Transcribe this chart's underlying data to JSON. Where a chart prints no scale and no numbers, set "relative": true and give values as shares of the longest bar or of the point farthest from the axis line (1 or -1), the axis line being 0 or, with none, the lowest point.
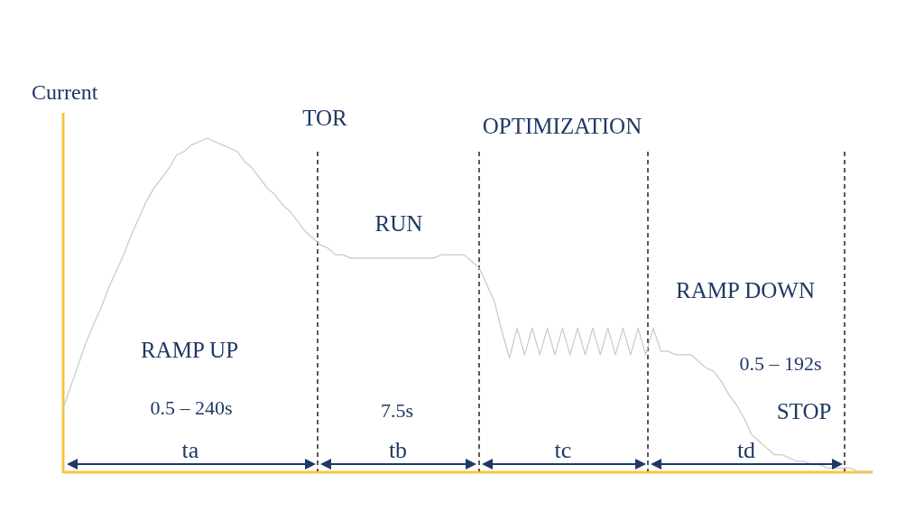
{
  "chart_data": {
    "type": "line",
    "relative": true,
    "ylabel": "Current",
    "marker": "none",
    "line_style": "solid",
    "categories": [
      null,
      null,
      null,
      null,
      null,
      null,
      null,
      null,
      null,
      null,
      null,
      null,
      null,
      null,
      null,
      null,
      null,
      null,
      null,
      null,
      null,
      null,
      null,
      null,
      null,
      null,
      null,
      null,
      null,
      null,
      null,
      null,
      null,
      null,
      null,
      null,
      null,
      null,
      null,
      null,
      null,
      null,
      null,
      null,
      null,
      null,
      null,
      null,
      null,
      null,
      null,
      null,
      null,
      null,
      null,
      null,
      null,
      null,
      null,
      null,
      null,
      null,
      null,
      null,
      null,
      null,
      null,
      null,
      null,
      null,
      null,
      null,
      null,
      null,
      null,
      null,
      null,
      null,
      null,
      null,
      null,
      null,
      null,
      null,
      null,
      null,
      null,
      null,
      null,
      null,
      null,
      null,
      null,
      null,
      null,
      null,
      null,
      null,
      null,
      null,
      null,
      null,
      null,
      null,
      null,
      null,
      null,
      null
    ],
    "series": [
      {
        "color": "#c8c8c8",
        "values": [
          0.19,
          0.255,
          0.32,
          0.385,
          0.44,
          0.49,
          0.55,
          0.6,
          0.65,
          0.71,
          0.76,
          0.81,
          0.85,
          0.88,
          0.91,
          0.95,
          0.96,
          0.98,
          0.99,
          1,
          0.99,
          0.98,
          0.97,
          0.96,
          0.93,
          0.91,
          0.88,
          0.85,
          0.83,
          0.8,
          0.78,
          0.75,
          0.72,
          0.7,
          0.68,
          0.67,
          0.65,
          0.65,
          0.64,
          0.64,
          0.64,
          0.64,
          0.64,
          0.64,
          0.64,
          0.64,
          0.64,
          0.64,
          0.64,
          0.64,
          0.65,
          0.65,
          0.65,
          0.65,
          0.63,
          0.61,
          0.56,
          0.51,
          0.42,
          0.34,
          0.43,
          0.35,
          0.43,
          0.35,
          0.43,
          0.35,
          0.43,
          0.35,
          0.43,
          0.35,
          0.43,
          0.35,
          0.43,
          0.35,
          0.43,
          0.35,
          0.43,
          0.35,
          0.43,
          0.36,
          0.36,
          0.35,
          0.35,
          0.35,
          0.33,
          0.31,
          0.3,
          0.27,
          0.23,
          0.2,
          0.16,
          0.11,
          0.09,
          0.07,
          0.05,
          0.05,
          0.04,
          0.03,
          0.03,
          0.02,
          0.02,
          0.01,
          0.01,
          0.01,
          0.01,
          0,
          0,
          0
        ]
      }
    ],
    "annotations": [
      "TOR",
      "OPTIMIZATION",
      "RUN",
      "RAMP UP",
      "0.5 – 240s",
      "7.5s",
      "RAMP DOWN",
      "0.5 – 192s",
      "STOP",
      "ta",
      "tb",
      "tc",
      "td"
    ]
  }
}
